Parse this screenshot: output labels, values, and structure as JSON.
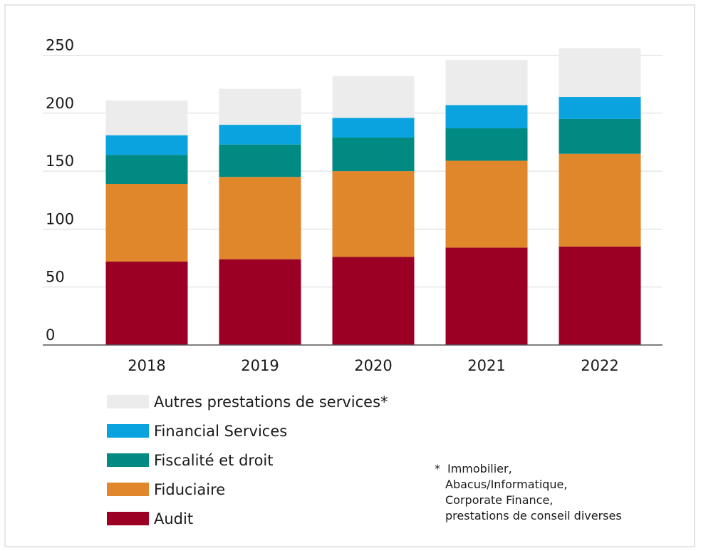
{
  "chart_data": {
    "type": "bar",
    "stacked": true,
    "categories": [
      "2018",
      "2019",
      "2020",
      "2021",
      "2022"
    ],
    "ylim": [
      0,
      250
    ],
    "yticks": [
      0,
      50,
      100,
      150,
      200,
      250
    ],
    "grid": true,
    "series": [
      {
        "name": "Audit",
        "color": "#9b0024",
        "values": [
          72,
          74,
          76,
          84,
          85
        ]
      },
      {
        "name": "Fiduciaire",
        "color": "#e0862b",
        "values": [
          67,
          71,
          74,
          75,
          80
        ]
      },
      {
        "name": "Fiscalité et droit",
        "color": "#008a82",
        "values": [
          25,
          28,
          29,
          28,
          30
        ]
      },
      {
        "name": "Financial Services",
        "color": "#0aa3df",
        "values": [
          17,
          17,
          17,
          20,
          19
        ]
      },
      {
        "name": "Autres prestations de services*",
        "color": "#ececec",
        "values": [
          30,
          31,
          36,
          39,
          42
        ]
      }
    ],
    "legend_order": [
      "Autres prestations de services*",
      "Financial Services",
      "Fiscalité et droit",
      "Fiduciaire",
      "Audit"
    ],
    "footnote": {
      "marker": "*",
      "lines": [
        "Immobilier,",
        "Abacus/Informatique,",
        "Corporate Finance,",
        "prestations de conseil diverses"
      ]
    }
  }
}
